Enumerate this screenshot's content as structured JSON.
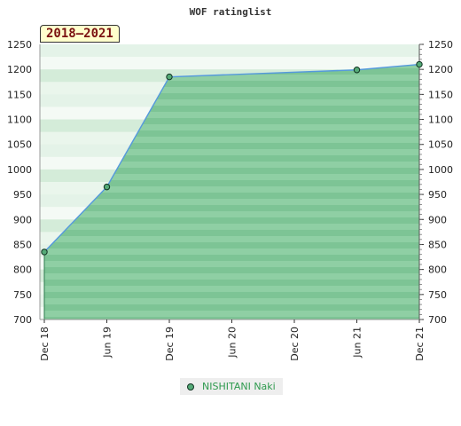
{
  "chart_data": {
    "type": "area",
    "title": "WOF ratinglist",
    "period_label": "2018–2021",
    "x_ticks": [
      "Dec 18",
      "Jun 19",
      "Dec 19",
      "Jun 20",
      "Dec 20",
      "Jun 21",
      "Dec 21"
    ],
    "y_ticks": [
      700,
      750,
      800,
      850,
      900,
      950,
      1000,
      1050,
      1100,
      1150,
      1200,
      1250
    ],
    "ylim": [
      700,
      1250
    ],
    "series": [
      {
        "name": "NISHITANI Naki",
        "points": [
          {
            "x": "Dec 18",
            "y": 835
          },
          {
            "x": "Jun 19",
            "y": 965
          },
          {
            "x": "Dec 19",
            "y": 1185
          },
          {
            "x": "Jun 21",
            "y": 1199
          },
          {
            "x": "Dec 21",
            "y": 1210
          }
        ]
      }
    ],
    "grid": true,
    "legend_position": "bottom-center",
    "colors": {
      "fill": "#7dc495",
      "line": "#5599dd",
      "marker": "#55aa77"
    }
  }
}
